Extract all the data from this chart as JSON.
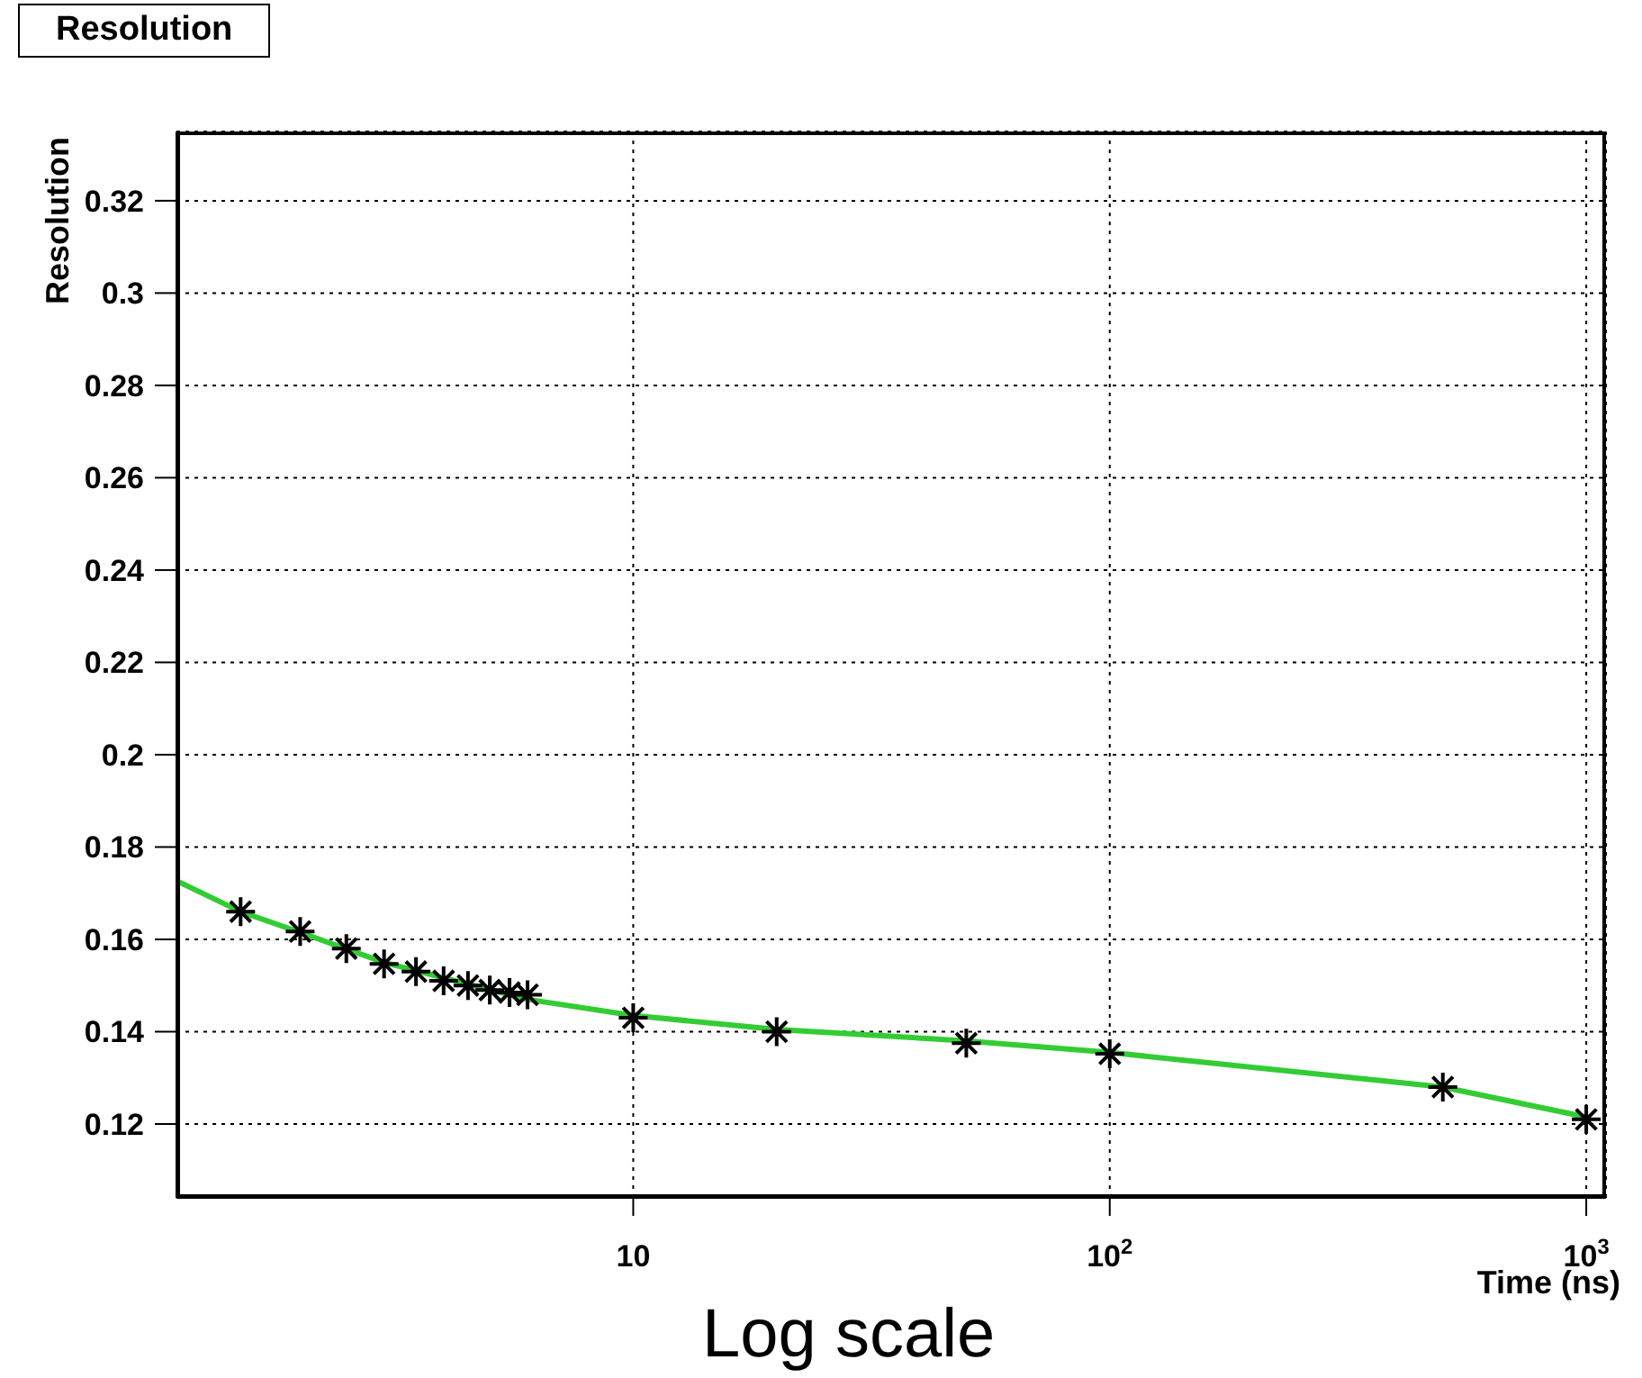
{
  "chart_data": {
    "type": "scatter",
    "title": "Resolution",
    "xlabel": "Time (ns)",
    "ylabel": "Resolution",
    "annotations": [
      "Log scale"
    ],
    "log": "x",
    "grid": true,
    "xlim": [
      1.1,
      1100
    ],
    "xticks": [
      10,
      {
        "value": 100,
        "label": "10$^{2}$"
      },
      {
        "value": 1000,
        "label": "10$^{3}$"
      }
    ],
    "ylim": [
      0.104,
      0.335
    ],
    "yticks": [
      0.12,
      0.14,
      0.16,
      0.18,
      0.2,
      0.22,
      0.24,
      0.26,
      0.28,
      0.3,
      0.32
    ],
    "series": [
      {
        "type": "line",
        "color": "#33cc33",
        "marker": "none",
        "line_style": "solid",
        "x": [
          1.1,
          1.5,
          2,
          3,
          6,
          10,
          20,
          50,
          100,
          500,
          1000
        ],
        "values": [
          0.1727,
          0.166,
          0.1615,
          0.155,
          0.147,
          0.1435,
          0.1405,
          0.138,
          0.1355,
          0.128,
          0.1215
        ]
      },
      {
        "color": "#000000",
        "marker": "cross",
        "x": [
          1.5,
          2,
          2.5,
          3,
          3.5,
          4,
          4.5,
          5,
          5.5,
          6,
          10,
          20,
          50,
          100,
          500,
          1000
        ],
        "values": [
          0.166,
          0.1617,
          0.158,
          0.1547,
          0.153,
          0.151,
          0.15,
          0.149,
          0.1485,
          0.148,
          0.143,
          0.14,
          0.1375,
          0.1352,
          0.128,
          0.121
        ]
      }
    ]
  }
}
